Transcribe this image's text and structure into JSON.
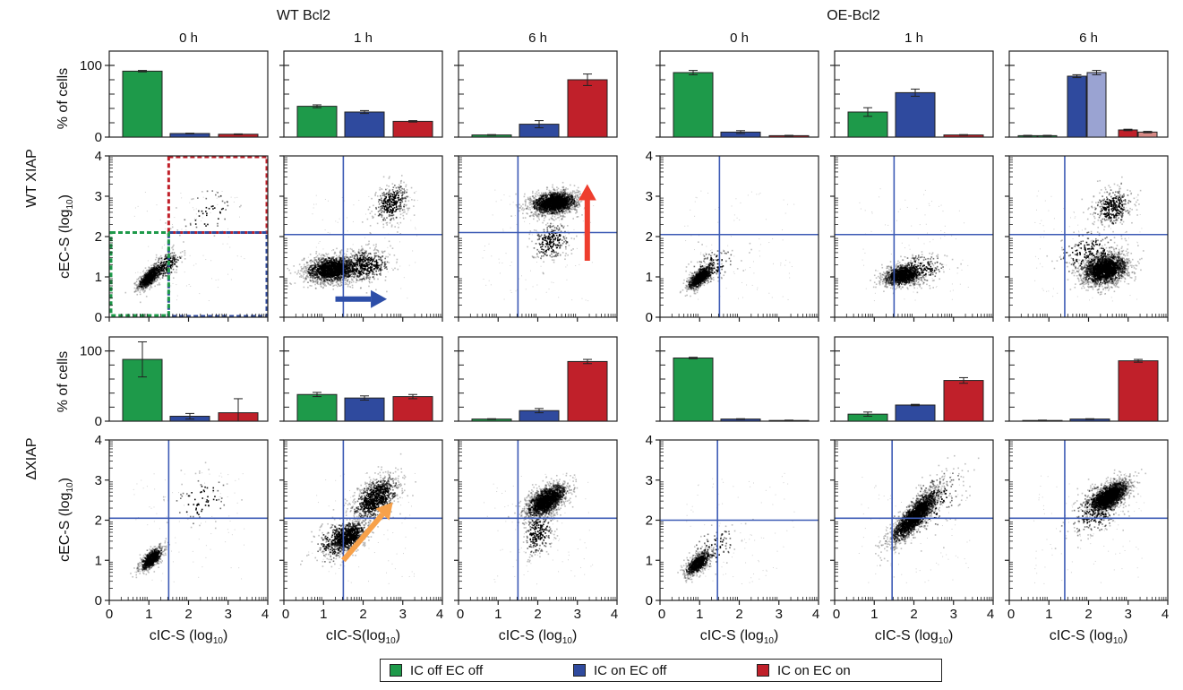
{
  "colors": {
    "green": "#1e9a4a",
    "blue": "#2f4a9e",
    "red": "#c0202a",
    "light_blue": "#9aa3d2",
    "light_red": "#d88a86",
    "gate_line": "#3d5bb5",
    "arrow_blue": "#2d4ea8",
    "arrow_red": "#ee3e2e",
    "arrow_orange": "#f7a14a"
  },
  "figure": {
    "group_titles": [
      "WT Bcl2",
      "OE-Bcl2"
    ],
    "time_labels": [
      "0 h",
      "1 h",
      "6 h",
      "0 h",
      "1 h",
      "6 h"
    ],
    "row_labels": [
      "WT XIAP",
      "ΔXIAP"
    ],
    "bar_ylabel": "% of cells",
    "scatter_ylabel_main": "cEC-S (log",
    "scatter_ylabel_sub": "10",
    "scatter_ylabel_end": ")",
    "scatter_xlabels": [
      {
        "main": "cIC-S (log",
        "sub": "10",
        "end": ")"
      },
      {
        "main": "cIC-S(log",
        "sub": "10",
        "end": ")"
      },
      {
        "main": "cIC-S (log",
        "sub": "10",
        "end": ")"
      },
      {
        "main": "cIC-S (log",
        "sub": "10",
        "end": ")"
      },
      {
        "main": "cIC-S (log",
        "sub": "10",
        "end": ")"
      },
      {
        "main": "cIC-S (log",
        "sub": "10",
        "end": ")"
      }
    ],
    "bar_yticks": [
      "0",
      "100"
    ],
    "scatter_ticks": [
      "0",
      "1",
      "2",
      "3",
      "4"
    ]
  },
  "legend": [
    {
      "label": "IC off EC off",
      "color": "#1e9a4a"
    },
    {
      "label": "IC on EC off",
      "color": "#2f4a9e"
    },
    {
      "label": "IC on EC on",
      "color": "#c0202a"
    }
  ],
  "chart_data": [
    {
      "type": "bar",
      "row": "WT XIAP",
      "y_range": [
        0,
        120
      ],
      "y_ticks": [
        0,
        100
      ],
      "panels": [
        {
          "group": "WT Bcl2",
          "time": "0 h",
          "bars": [
            {
              "category": "IC off EC off",
              "value": 92,
              "err": 1
            },
            {
              "category": "IC on EC off",
              "value": 5,
              "err": 0.5
            },
            {
              "category": "IC on EC on",
              "value": 4,
              "err": 0.5
            }
          ]
        },
        {
          "group": "WT Bcl2",
          "time": "1 h",
          "bars": [
            {
              "category": "IC off EC off",
              "value": 43,
              "err": 2
            },
            {
              "category": "IC on EC off",
              "value": 35,
              "err": 2
            },
            {
              "category": "IC on EC on",
              "value": 22,
              "err": 1
            }
          ]
        },
        {
          "group": "WT Bcl2",
          "time": "6 h",
          "bars": [
            {
              "category": "IC off EC off",
              "value": 3,
              "err": 0.5
            },
            {
              "category": "IC on EC off",
              "value": 18,
              "err": 5
            },
            {
              "category": "IC on EC on",
              "value": 80,
              "err": 8
            }
          ]
        },
        {
          "group": "OE-Bcl2",
          "time": "0 h",
          "bars": [
            {
              "category": "IC off EC off",
              "value": 90,
              "err": 3
            },
            {
              "category": "IC on EC off",
              "value": 7,
              "err": 2
            },
            {
              "category": "IC on EC on",
              "value": 2,
              "err": 0.5
            }
          ]
        },
        {
          "group": "OE-Bcl2",
          "time": "1 h",
          "bars": [
            {
              "category": "IC off EC off",
              "value": 35,
              "err": 6
            },
            {
              "category": "IC on EC off",
              "value": 62,
              "err": 5
            },
            {
              "category": "IC on EC on",
              "value": 3,
              "err": 0.5
            }
          ]
        },
        {
          "group": "OE-Bcl2",
          "time": "6 h",
          "bars": [
            {
              "category": "IC off EC off",
              "value": 2,
              "err": 0.5,
              "color": "green"
            },
            {
              "category": "IC off EC off",
              "value": 2,
              "err": 0.5,
              "color": "green"
            },
            {
              "category": "IC on EC off",
              "value": 85,
              "err": 2,
              "color": "blue"
            },
            {
              "category": "IC on EC off",
              "value": 90,
              "err": 3,
              "color": "light_blue"
            },
            {
              "category": "IC on EC on",
              "value": 10,
              "err": 1,
              "color": "red"
            },
            {
              "category": "IC on EC on",
              "value": 7,
              "err": 1,
              "color": "light_red"
            }
          ]
        }
      ]
    },
    {
      "type": "scatter",
      "row": "WT XIAP",
      "x_range": [
        0,
        4
      ],
      "y_range": [
        0,
        4
      ],
      "panels": [
        {
          "group": "WT Bcl2",
          "time": "0 h",
          "gates": "dashed",
          "gate_x": 1.5,
          "gate_y": 2.1,
          "clusters": [
            {
              "x": 1.0,
              "y": 1.0,
              "sx": 0.15,
              "sy": 0.15,
              "rho": 0.7,
              "n": 700
            },
            {
              "x": 1.4,
              "y": 1.3,
              "sx": 0.22,
              "sy": 0.2,
              "rho": 0.6,
              "n": 250
            },
            {
              "x": 2.5,
              "y": 2.6,
              "sx": 0.35,
              "sy": 0.35,
              "rho": 0.3,
              "n": 60
            }
          ]
        },
        {
          "group": "WT Bcl2",
          "time": "1 h",
          "gate_x": 1.5,
          "gate_y": 2.05,
          "arrow": {
            "color": "arrow_blue",
            "from": [
              1.3,
              0.45
            ],
            "to": [
              2.6,
              0.45
            ]
          },
          "clusters": [
            {
              "x": 1.2,
              "y": 1.2,
              "sx": 0.35,
              "sy": 0.17,
              "rho": 0.1,
              "n": 1600
            },
            {
              "x": 2.0,
              "y": 1.3,
              "sx": 0.35,
              "sy": 0.2,
              "rho": 0.1,
              "n": 500
            },
            {
              "x": 2.7,
              "y": 2.85,
              "sx": 0.22,
              "sy": 0.25,
              "rho": 0.3,
              "n": 350
            }
          ]
        },
        {
          "group": "WT Bcl2",
          "time": "6 h",
          "gate_x": 1.5,
          "gate_y": 2.1,
          "arrow": {
            "color": "arrow_red",
            "from": [
              3.25,
              1.4
            ],
            "to": [
              3.25,
              3.3
            ]
          },
          "clusters": [
            {
              "x": 2.4,
              "y": 2.85,
              "sx": 0.3,
              "sy": 0.15,
              "rho": 0.2,
              "n": 1700
            },
            {
              "x": 2.3,
              "y": 1.9,
              "sx": 0.25,
              "sy": 0.25,
              "rho": 0.2,
              "n": 250
            }
          ]
        },
        {
          "group": "OE-Bcl2",
          "time": "0 h",
          "gate_x": 1.5,
          "gate_y": 2.05,
          "clusters": [
            {
              "x": 1.0,
              "y": 1.0,
              "sx": 0.17,
              "sy": 0.16,
              "rho": 0.7,
              "n": 700
            },
            {
              "x": 1.3,
              "y": 1.3,
              "sx": 0.3,
              "sy": 0.25,
              "rho": 0.5,
              "n": 120
            }
          ]
        },
        {
          "group": "OE-Bcl2",
          "time": "1 h",
          "gate_x": 1.5,
          "gate_y": 2.05,
          "clusters": [
            {
              "x": 1.7,
              "y": 1.05,
              "sx": 0.25,
              "sy": 0.13,
              "rho": 0.3,
              "n": 1100
            },
            {
              "x": 2.1,
              "y": 1.2,
              "sx": 0.35,
              "sy": 0.2,
              "rho": 0.2,
              "n": 250
            }
          ]
        },
        {
          "group": "OE-Bcl2",
          "time": "6 h",
          "gate_x": 1.4,
          "gate_y": 2.05,
          "clusters": [
            {
              "x": 2.4,
              "y": 1.2,
              "sx": 0.3,
              "sy": 0.2,
              "rho": 0.2,
              "n": 1900
            },
            {
              "x": 2.6,
              "y": 2.75,
              "sx": 0.25,
              "sy": 0.25,
              "rho": 0.2,
              "n": 350
            },
            {
              "x": 2.0,
              "y": 1.6,
              "sx": 0.4,
              "sy": 0.3,
              "rho": 0.2,
              "n": 200
            }
          ]
        }
      ]
    },
    {
      "type": "bar",
      "row": "ΔXIAP",
      "y_range": [
        0,
        120
      ],
      "y_ticks": [
        0,
        100
      ],
      "panels": [
        {
          "group": "WT Bcl2",
          "time": "0 h",
          "bars": [
            {
              "category": "IC off EC off",
              "value": 88,
              "err": 25
            },
            {
              "category": "IC on EC off",
              "value": 7,
              "err": 4
            },
            {
              "category": "IC on EC on",
              "value": 12,
              "err": 20
            }
          ]
        },
        {
          "group": "WT Bcl2",
          "time": "1 h",
          "bars": [
            {
              "category": "IC off EC off",
              "value": 38,
              "err": 3
            },
            {
              "category": "IC on EC off",
              "value": 33,
              "err": 3
            },
            {
              "category": "IC on EC on",
              "value": 35,
              "err": 3
            }
          ]
        },
        {
          "group": "WT Bcl2",
          "time": "6 h",
          "bars": [
            {
              "category": "IC off EC off",
              "value": 3,
              "err": 0.5
            },
            {
              "category": "IC on EC off",
              "value": 15,
              "err": 3
            },
            {
              "category": "IC on EC on",
              "value": 85,
              "err": 3
            }
          ]
        },
        {
          "group": "OE-Bcl2",
          "time": "0 h",
          "bars": [
            {
              "category": "IC off EC off",
              "value": 90,
              "err": 1
            },
            {
              "category": "IC on EC off",
              "value": 3,
              "err": 0.5
            },
            {
              "category": "IC on EC on",
              "value": 1,
              "err": 0.5
            }
          ]
        },
        {
          "group": "OE-Bcl2",
          "time": "1 h",
          "bars": [
            {
              "category": "IC off EC off",
              "value": 10,
              "err": 3
            },
            {
              "category": "IC on EC off",
              "value": 23,
              "err": 1
            },
            {
              "category": "IC on EC on",
              "value": 58,
              "err": 4
            }
          ]
        },
        {
          "group": "OE-Bcl2",
          "time": "6 h",
          "bars": [
            {
              "category": "IC off EC off",
              "value": 1,
              "err": 0.5
            },
            {
              "category": "IC on EC off",
              "value": 3,
              "err": 0.5
            },
            {
              "category": "IC on EC on",
              "value": 86,
              "err": 2
            }
          ]
        }
      ]
    },
    {
      "type": "scatter",
      "row": "ΔXIAP",
      "x_range": [
        0,
        4
      ],
      "y_range": [
        0,
        4
      ],
      "panels": [
        {
          "group": "WT Bcl2",
          "time": "0 h",
          "gate_x": 1.5,
          "gate_y": 2.05,
          "clusters": [
            {
              "x": 1.05,
              "y": 1.05,
              "sx": 0.15,
              "sy": 0.15,
              "rho": 0.7,
              "n": 700
            },
            {
              "x": 2.3,
              "y": 2.5,
              "sx": 0.4,
              "sy": 0.35,
              "rho": 0.3,
              "n": 80
            }
          ]
        },
        {
          "group": "WT Bcl2",
          "time": "1 h",
          "gate_x": 1.5,
          "gate_y": 2.05,
          "arrow": {
            "color": "arrow_orange",
            "from": [
              1.5,
              1.0
            ],
            "to": [
              2.75,
              2.45
            ]
          },
          "clusters": [
            {
              "x": 1.6,
              "y": 1.6,
              "sx": 0.25,
              "sy": 0.2,
              "rho": 0.5,
              "n": 900
            },
            {
              "x": 2.3,
              "y": 2.55,
              "sx": 0.3,
              "sy": 0.3,
              "rho": 0.5,
              "n": 900
            },
            {
              "x": 1.3,
              "y": 1.5,
              "sx": 0.3,
              "sy": 0.3,
              "rho": 0.4,
              "n": 200
            }
          ]
        },
        {
          "group": "WT Bcl2",
          "time": "6 h",
          "gate_x": 1.5,
          "gate_y": 2.05,
          "clusters": [
            {
              "x": 2.2,
              "y": 2.5,
              "sx": 0.27,
              "sy": 0.22,
              "rho": 0.6,
              "n": 1600
            },
            {
              "x": 2.0,
              "y": 1.7,
              "sx": 0.2,
              "sy": 0.3,
              "rho": 0.3,
              "n": 250
            }
          ]
        },
        {
          "group": "OE-Bcl2",
          "time": "0 h",
          "gate_x": 1.45,
          "gate_y": 2.0,
          "clusters": [
            {
              "x": 0.95,
              "y": 0.95,
              "sx": 0.17,
              "sy": 0.16,
              "rho": 0.7,
              "n": 700
            },
            {
              "x": 1.3,
              "y": 1.3,
              "sx": 0.3,
              "sy": 0.3,
              "rho": 0.5,
              "n": 100
            }
          ]
        },
        {
          "group": "OE-Bcl2",
          "time": "1 h",
          "gate_x": 1.45,
          "gate_y": 2.05,
          "clusters": [
            {
              "x": 2.0,
              "y": 2.1,
              "sx": 0.32,
              "sy": 0.35,
              "rho": 0.85,
              "n": 1900
            },
            {
              "x": 2.4,
              "y": 2.4,
              "sx": 0.45,
              "sy": 0.45,
              "rho": 0.6,
              "n": 200
            }
          ]
        },
        {
          "group": "OE-Bcl2",
          "time": "6 h",
          "gate_x": 1.4,
          "gate_y": 2.05,
          "clusters": [
            {
              "x": 2.5,
              "y": 2.6,
              "sx": 0.25,
              "sy": 0.2,
              "rho": 0.6,
              "n": 1800
            },
            {
              "x": 2.2,
              "y": 2.3,
              "sx": 0.35,
              "sy": 0.35,
              "rho": 0.4,
              "n": 300
            }
          ]
        }
      ]
    }
  ]
}
